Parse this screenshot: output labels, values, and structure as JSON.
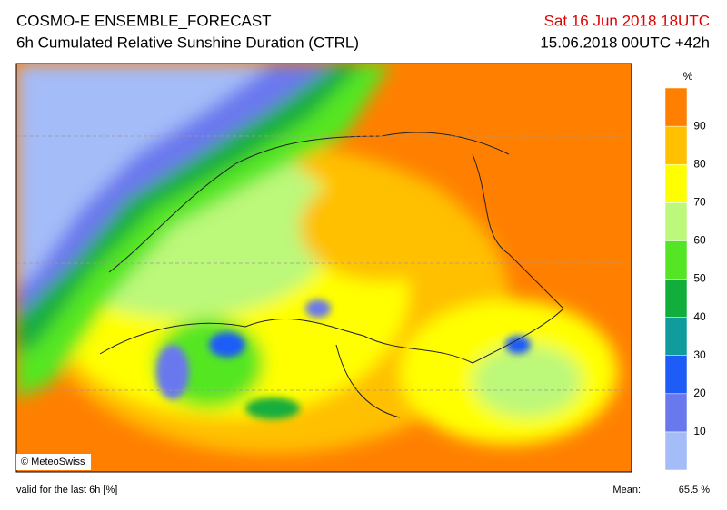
{
  "header": {
    "title": "COSMO-E ENSEMBLE_FORECAST",
    "subtitle": "6h Cumulated Relative Sunshine Duration (CTRL)",
    "valid_time": "Sat 16 Jun 2018 18UTC",
    "run": "15.06.2018 00UTC +42h"
  },
  "map": {
    "credit": "© MeteoSwiss"
  },
  "legend": {
    "unit": "%",
    "ticks": [
      10,
      20,
      30,
      40,
      50,
      60,
      70,
      80,
      90
    ],
    "colors": [
      "#a4bcf8",
      "#6a78ee",
      "#1e5cf8",
      "#109c9c",
      "#12ae3c",
      "#54e624",
      "#bcf87a",
      "#ffff00",
      "#ffc000",
      "#ff8000"
    ]
  },
  "footer": {
    "note": "valid for the last 6h [%]",
    "mean_label": "Mean:",
    "mean_value": "65.5 %"
  }
}
